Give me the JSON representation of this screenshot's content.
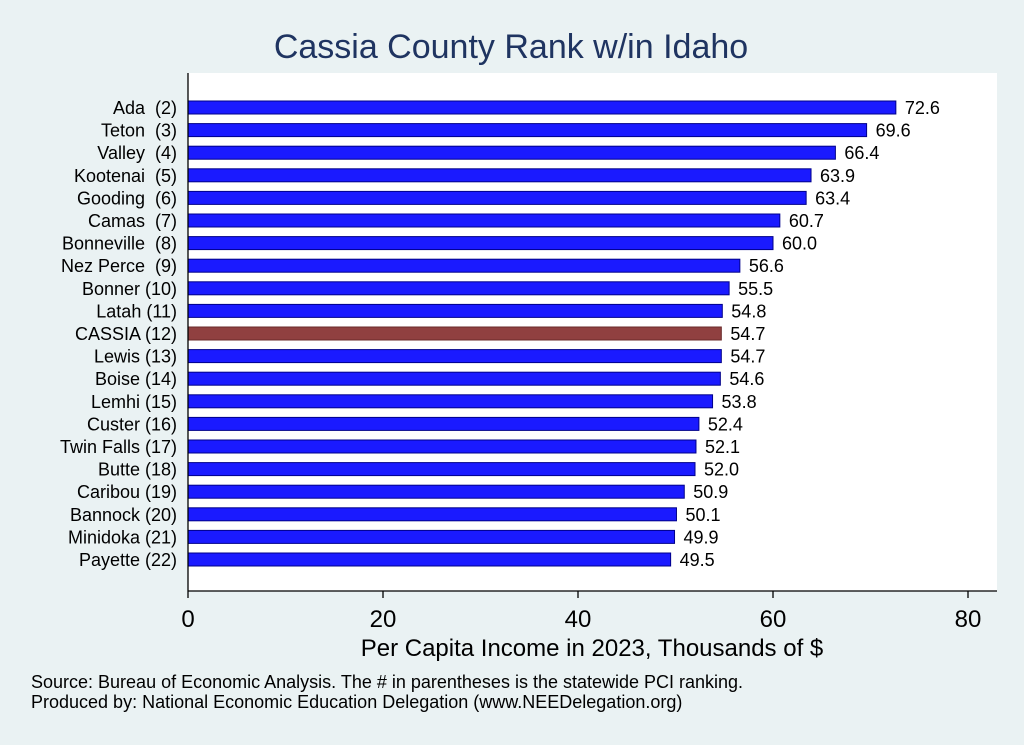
{
  "chart_data": {
    "type": "bar",
    "orientation": "horizontal",
    "title": "Cassia County Rank w/in Idaho",
    "xlabel": "Per Capita Income in 2023, Thousands of $",
    "ylabel": "",
    "xlim": [
      0,
      80
    ],
    "xticks": [
      0,
      20,
      40,
      60,
      80
    ],
    "grid": false,
    "legend": "none",
    "colors": {
      "bar": "#1a1aff",
      "highlight": "#904040",
      "title": "#1f3461",
      "background": "#eaf2f3",
      "plot_background": "#ffffff"
    },
    "categories": [
      "Ada  (2)",
      "Teton  (3)",
      "Valley  (4)",
      "Kootenai  (5)",
      "Gooding  (6)",
      "Camas  (7)",
      "Bonneville  (8)",
      "Nez Perce  (9)",
      "Bonner (10)",
      "Latah (11)",
      "CASSIA (12)",
      "Lewis (13)",
      "Boise (14)",
      "Lemhi (15)",
      "Custer (16)",
      "Twin Falls (17)",
      "Butte (18)",
      "Caribou (19)",
      "Bannock (20)",
      "Minidoka (21)",
      "Payette (22)"
    ],
    "values": [
      72.6,
      69.6,
      66.4,
      63.9,
      63.4,
      60.7,
      60.0,
      56.6,
      55.5,
      54.8,
      54.7,
      54.7,
      54.6,
      53.8,
      52.4,
      52.1,
      52.0,
      50.9,
      50.1,
      49.9,
      49.5
    ],
    "value_labels": [
      "72.6",
      "69.6",
      "66.4",
      "63.9",
      "63.4",
      "60.7",
      "60.0",
      "56.6",
      "55.5",
      "54.8",
      "54.7",
      "54.7",
      "54.6",
      "53.8",
      "52.4",
      "52.1",
      "52.0",
      "50.9",
      "50.1",
      "49.9",
      "49.5"
    ],
    "highlight_category": "CASSIA (12)"
  },
  "footnotes": {
    "source": "Source: Bureau of Economic Analysis. The # in parentheses is the statewide PCI ranking.",
    "producer": "Produced by: National Economic Education Delegation (www.NEEDelegation.org)"
  }
}
